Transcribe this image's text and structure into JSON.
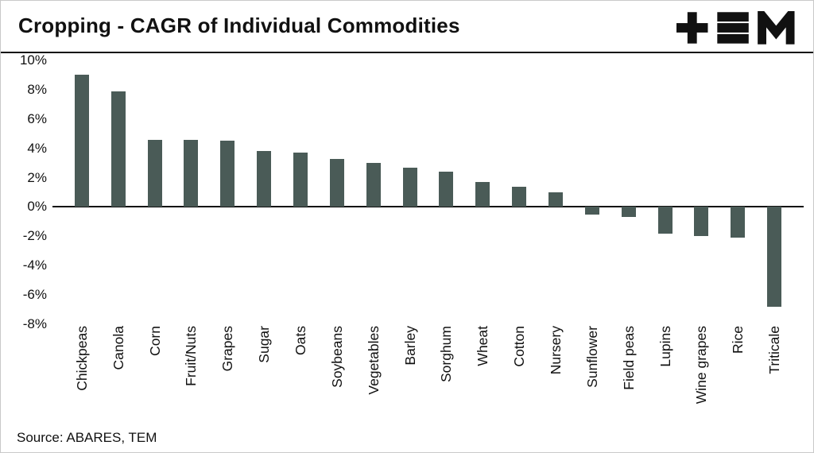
{
  "header": {
    "title": "Cropping - CAGR of Individual Commodities",
    "logo_name": "TEM"
  },
  "source": "Source: ABARES, TEM",
  "colors": {
    "bar": "#4a5b57",
    "axis": "#111111",
    "text": "#111111"
  },
  "chart_data": {
    "type": "bar",
    "title": "Cropping - CAGR of Individual Commodities",
    "categories": [
      "Chickpeas",
      "Canola",
      "Corn",
      "Fruit/Nuts",
      "Grapes",
      "Sugar",
      "Oats",
      "Soybeans",
      "Vegetables",
      "Barley",
      "Sorghum",
      "Wheat",
      "Cotton",
      "Nursery",
      "Sunflower",
      "Field peas",
      "Lupins",
      "Wine grapes",
      "Rice",
      "Triticale"
    ],
    "values": [
      9.0,
      7.9,
      4.6,
      4.6,
      4.5,
      3.8,
      3.7,
      3.3,
      3.0,
      2.7,
      2.4,
      1.7,
      1.4,
      1.0,
      -0.5,
      -0.7,
      -1.8,
      -2.0,
      -2.1,
      -6.8
    ],
    "xlabel": "",
    "ylabel": "",
    "ylim": [
      -8,
      10
    ],
    "yticks": [
      10,
      8,
      6,
      4,
      2,
      0,
      -2,
      -4,
      -6,
      -8
    ],
    "ytick_labels": [
      "10%",
      "8%",
      "6%",
      "4%",
      "2%",
      "0%",
      "-2%",
      "-4%",
      "-6%",
      "-8%"
    ],
    "grid": false,
    "legend": false,
    "bar_orientation": "vertical",
    "x_tick_rotation": 90
  }
}
